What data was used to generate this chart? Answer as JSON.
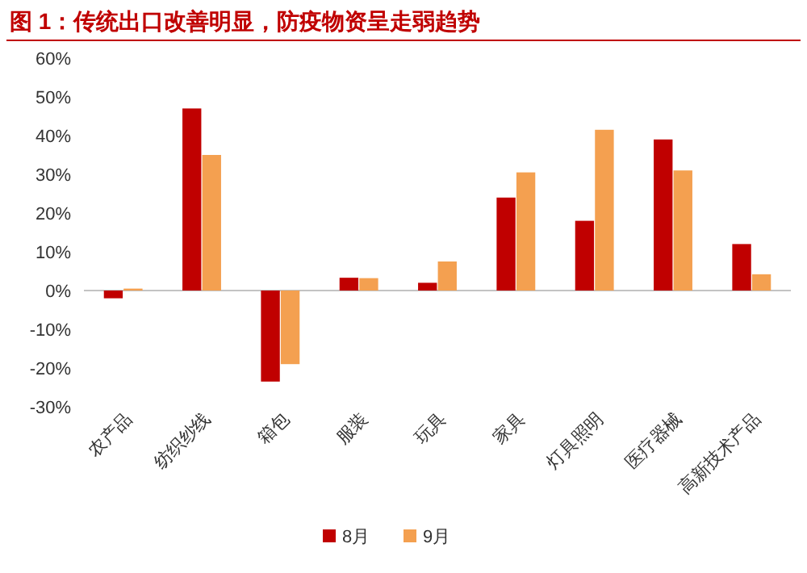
{
  "chart_data": {
    "type": "bar",
    "title": "图 1：传统出口改善明显，防疫物资呈走弱趋势",
    "categories": [
      "农产品",
      "纺织纱线",
      "箱包",
      "服装",
      "玩具",
      "家具",
      "灯具照明",
      "医疗器械",
      "高新技术产品"
    ],
    "series": [
      {
        "name": "8月",
        "color": "#c00000",
        "values": [
          -2,
          47,
          -23.5,
          3.3,
          2,
          24,
          18,
          39,
          12
        ]
      },
      {
        "name": "9月",
        "color": "#f4a050",
        "values": [
          0.5,
          35,
          -19,
          3.2,
          7.5,
          30.5,
          41.5,
          31,
          4.2
        ]
      }
    ],
    "ylim": [
      -30,
      60
    ],
    "yticks": [
      {
        "value": -30,
        "label": "-30%"
      },
      {
        "value": -20,
        "label": "-20%"
      },
      {
        "value": -10,
        "label": "-10%"
      },
      {
        "value": 0,
        "label": "0%"
      },
      {
        "value": 10,
        "label": "10%"
      },
      {
        "value": 20,
        "label": "20%"
      },
      {
        "value": 30,
        "label": "30%"
      },
      {
        "value": 40,
        "label": "40%"
      },
      {
        "value": 50,
        "label": "50%"
      },
      {
        "value": 60,
        "label": "60%"
      }
    ],
    "legend": "bottom"
  }
}
